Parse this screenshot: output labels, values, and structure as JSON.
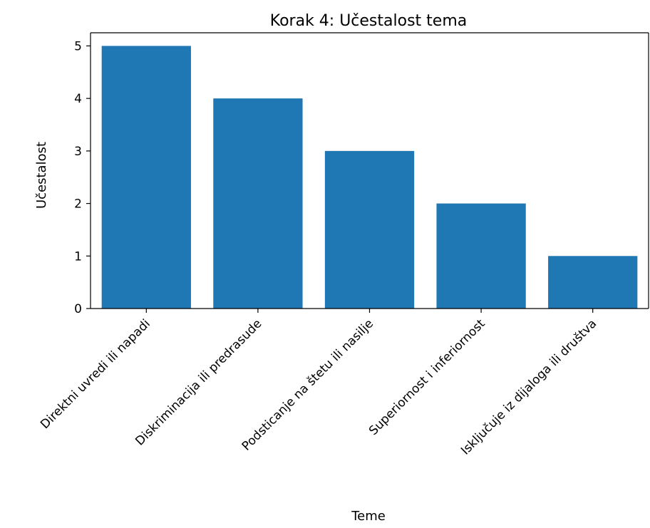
{
  "chart_data": {
    "type": "bar",
    "title": "Korak 4: Učestalost tema",
    "xlabel": "Teme",
    "ylabel": "Učestalost",
    "categories": [
      "Direktni uvredi ili napadi",
      "Diskriminacija ili predrasude",
      "Podsticanje na štetu ili nasilje",
      "Superiornost i inferiornost",
      "Isključuje iz dijaloga ili društva"
    ],
    "values": [
      5,
      4,
      3,
      2,
      1
    ],
    "ylim": [
      0,
      5.25
    ],
    "yticks": [
      0,
      1,
      2,
      3,
      4,
      5
    ],
    "grid": false,
    "bar_color": "#1f77b4"
  }
}
